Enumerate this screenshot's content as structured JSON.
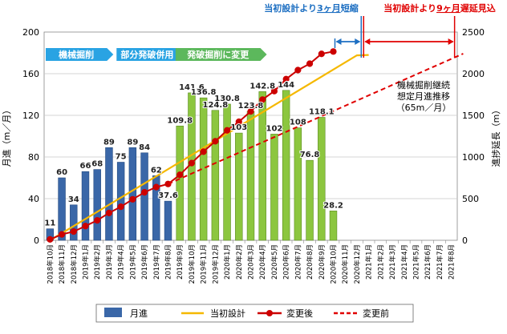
{
  "chart_data": {
    "type": "bar",
    "title": "",
    "y_left_label": "月進（m／月）",
    "y_right_label": "進捗延長（m）",
    "y_left_range": [
      0,
      200
    ],
    "y_left_ticks": [
      0,
      40,
      80,
      120,
      160,
      200
    ],
    "y_right_range": [
      0,
      2500
    ],
    "y_right_ticks": [
      0,
      500,
      1000,
      1500,
      2000,
      2500
    ],
    "grid": true,
    "legend_position": "bottom",
    "categories": [
      "2018年10月",
      "2018年11月",
      "2018年12月",
      "2019年1月",
      "2019年2月",
      "2019年3月",
      "2019年4月",
      "2019年5月",
      "2019年6月",
      "2019年7月",
      "2019年8月",
      "2019年9月",
      "2019年10月",
      "2019年11月",
      "2019年12月",
      "2020年1月",
      "2020年2月",
      "2020年3月",
      "2020年4月",
      "2020年5月",
      "2020年6月",
      "2020年7月",
      "2020年8月",
      "2020年9月",
      "2020年10月",
      "2020年11月",
      "2020年12月",
      "2021年1月",
      "2021年2月",
      "2021年3月",
      "2021年4月",
      "2021年5月",
      "2021年6月",
      "2021年7月",
      "2021年8月"
    ],
    "monthly_bars": {
      "name": "月進",
      "axis": "left",
      "values": [
        11,
        60,
        34,
        66,
        68,
        89,
        75,
        89,
        84,
        62,
        37.6,
        109.8,
        141.6,
        136.8,
        124.8,
        130.8,
        103,
        123.8,
        142.8,
        102,
        144,
        108,
        76.8,
        118.1,
        28.2
      ],
      "labels": [
        "11",
        "60",
        "34",
        "66",
        "68",
        "89",
        "75",
        "89",
        "84",
        "62",
        "37.6",
        "109.8",
        "141.6",
        "136.8",
        "124.8",
        "130.8",
        "103",
        "123.8",
        "142.8",
        "102",
        "144",
        "108",
        "76.8",
        "118.1",
        "28.2"
      ],
      "color_mechanical": "#3a67a8",
      "color_blasting": "#8cc63f",
      "blasting_from_index": 11
    },
    "line_series": [
      {
        "name": "当初設計",
        "axis": "right",
        "color": "#f5b800",
        "style": "solid",
        "points": [
          [
            0,
            0
          ],
          [
            26,
            2220
          ],
          [
            27,
            2225
          ]
        ]
      },
      {
        "name": "変更後",
        "axis": "right",
        "color": "#cc0000",
        "style": "solid-markers",
        "points": [
          [
            0,
            11
          ],
          [
            1,
            71
          ],
          [
            2,
            105
          ],
          [
            3,
            171
          ],
          [
            4,
            239
          ],
          [
            5,
            328
          ],
          [
            6,
            403
          ],
          [
            7,
            492
          ],
          [
            8,
            576
          ],
          [
            9,
            638
          ],
          [
            10,
            676
          ],
          [
            11,
            786
          ],
          [
            12,
            927
          ],
          [
            13,
            1064
          ],
          [
            14,
            1189
          ],
          [
            15,
            1320
          ],
          [
            16,
            1423
          ],
          [
            17,
            1547
          ],
          [
            18,
            1689
          ],
          [
            19,
            1791
          ],
          [
            20,
            1935
          ],
          [
            21,
            2043
          ],
          [
            22,
            2120
          ],
          [
            23,
            2238
          ],
          [
            24,
            2266
          ]
        ]
      },
      {
        "name": "変更前",
        "axis": "right",
        "color": "#e00000",
        "style": "dashed",
        "points": [
          [
            10,
            676
          ],
          [
            35,
            2240
          ]
        ]
      }
    ],
    "phases": [
      {
        "label": "機械掘削",
        "color": "#29a3e3",
        "from": 0,
        "to": 5
      },
      {
        "label": "部分発破併用",
        "color": "#29a3e3",
        "from": 6,
        "to": 11
      },
      {
        "label": "発破掘削に変更",
        "color": "#5cb85c",
        "from": 11,
        "to": 18
      }
    ],
    "annotations": {
      "shorten_label_prefix": "当初設計より",
      "shorten_label_em": "3ヶ月",
      "shorten_label_suffix": "短縮",
      "delay_label_prefix": "当初設計より",
      "delay_label_em": "9ヶ月",
      "delay_label_suffix": "遅延見込",
      "shorten_color": "#1d6fc2",
      "delay_color": "#e00000",
      "note_lines": [
        "機械掘削継続",
        "想定月進推移",
        "（65m／月）"
      ]
    },
    "legend": [
      {
        "label": "月進",
        "kind": "bar"
      },
      {
        "label": "当初設計",
        "kind": "line-orange"
      },
      {
        "label": "変更後",
        "kind": "line-red-marker"
      },
      {
        "label": "変更前",
        "kind": "line-red-dash"
      }
    ]
  }
}
